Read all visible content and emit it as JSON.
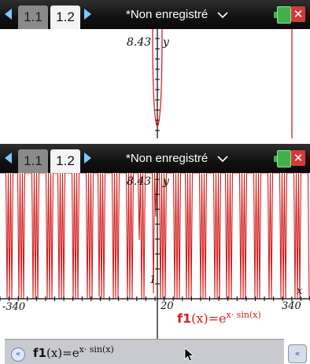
{
  "screen1": {
    "tabs": [
      {
        "label": "1.1"
      },
      {
        "label": "1.2"
      }
    ],
    "title": "*Non enregistré",
    "graph": {
      "ymax_label": "8.43",
      "y_axis_label": "y"
    }
  },
  "screen2": {
    "tabs": [
      {
        "label": "1.1"
      },
      {
        "label": "1.2"
      }
    ],
    "title": "*Non enregistré",
    "graph": {
      "ymax_label": "8.43",
      "y_axis_label": "y",
      "x_axis_label": "x",
      "xmin_label": "-340",
      "xmax_label": "340",
      "xscale_label": "20",
      "yscale_label": "1"
    },
    "function_label": {
      "name": "f1",
      "arg": "(x)=e",
      "exponent": "x· sin(x)"
    },
    "entry_line": {
      "name": "f1",
      "arg": "(x)=e",
      "exponent": "x· sin(x)"
    }
  },
  "chart_data": {
    "type": "line",
    "series": [
      {
        "name": "f1(x)=e^(x·sin(x))"
      }
    ],
    "xlim": [
      -340,
      340
    ],
    "ylim": [
      0,
      8.43
    ],
    "x_tick_spacing": 20,
    "y_tick_spacing": 1
  },
  "colors": {
    "curve": "#d2201f",
    "tabbar": "#111111",
    "accent": "#7fc8ff"
  },
  "icons": {
    "left": "left-arrow-icon",
    "right": "right-arrow-icon",
    "battery": "battery-icon",
    "close": "close-icon"
  }
}
